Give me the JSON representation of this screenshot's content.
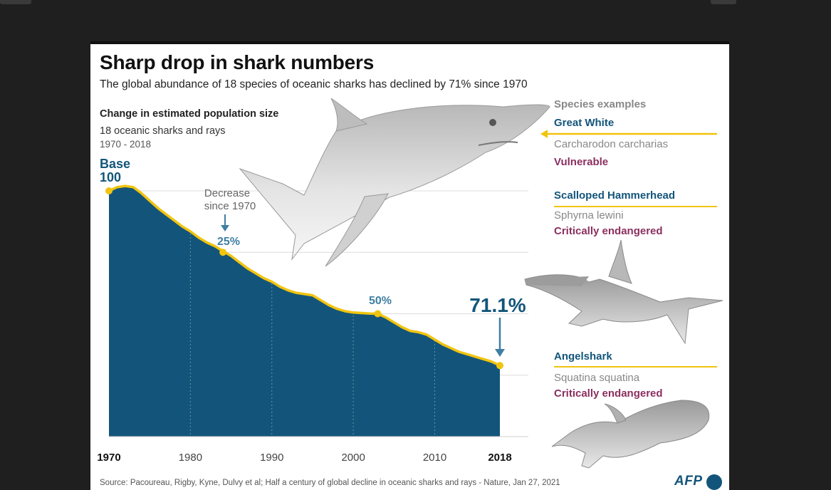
{
  "header": {
    "title": "Sharp drop in shark numbers",
    "subtitle": "The global abundance of 18 species of oceanic sharks has declined by 71% since 1970"
  },
  "chart_label": {
    "heading": "Change in estimated population size",
    "subheading": "18 oceanic sharks and rays",
    "range": "1970 - 2018"
  },
  "chart_data": {
    "type": "area",
    "title": "Change in estimated population size",
    "xlabel": "",
    "ylabel": "",
    "xlim": [
      1970,
      2018
    ],
    "ylim": [
      0,
      100
    ],
    "x_ticks": [
      {
        "label": "1970",
        "value": 1970,
        "bold": true
      },
      {
        "label": "1980",
        "value": 1980,
        "bold": false
      },
      {
        "label": "1990",
        "value": 1990,
        "bold": false
      },
      {
        "label": "2000",
        "value": 2000,
        "bold": false
      },
      {
        "label": "2010",
        "value": 2010,
        "bold": false
      },
      {
        "label": "2018",
        "value": 2018,
        "bold": true
      }
    ],
    "y_gridlines": [
      0,
      25,
      50,
      75,
      100
    ],
    "x": [
      1970,
      1971,
      1972,
      1973,
      1974,
      1975,
      1976,
      1977,
      1978,
      1979,
      1980,
      1981,
      1982,
      1983,
      1984,
      1985,
      1986,
      1987,
      1988,
      1989,
      1990,
      1991,
      1992,
      1993,
      1994,
      1995,
      1996,
      1997,
      1998,
      1999,
      2000,
      2001,
      2002,
      2003,
      2004,
      2005,
      2006,
      2007,
      2008,
      2009,
      2010,
      2011,
      2012,
      2013,
      2014,
      2015,
      2016,
      2017,
      2018
    ],
    "values": [
      100,
      101.5,
      102,
      101.5,
      99,
      96,
      93,
      90.5,
      88,
      85.5,
      83.5,
      81,
      79,
      77.5,
      75.5,
      73.5,
      71,
      68.5,
      66.5,
      64.5,
      63,
      61,
      59.5,
      58.5,
      58,
      57.5,
      55.5,
      53.5,
      52,
      51,
      50.5,
      50.3,
      50.1,
      50,
      48.5,
      46.5,
      44.5,
      43,
      42.5,
      41.5,
      39.5,
      37.5,
      36,
      34.5,
      33.5,
      32.5,
      31.5,
      30.5,
      28.9
    ],
    "markers": [
      {
        "x": 1970,
        "y": 100
      },
      {
        "x": 1984,
        "y": 75
      },
      {
        "x": 2003,
        "y": 50
      },
      {
        "x": 2018,
        "y": 28.9
      }
    ],
    "annotations": {
      "base_line1": "Base",
      "base_line2": "100",
      "decrease_line1": "Decrease",
      "decrease_line2": "since 1970",
      "p25": "25%",
      "p50": "50%",
      "final": "71.1%"
    }
  },
  "species": {
    "heading": "Species examples",
    "items": [
      {
        "name": "Great White",
        "scientific": "Carcharodon carcharias",
        "status": "Vulnerable"
      },
      {
        "name": "Scalloped Hammerhead",
        "scientific": "Sphyrna lewini",
        "status": "Critically endangered"
      },
      {
        "name": "Angelshark",
        "scientific": "Squatina squatina",
        "status": "Critically endangered"
      }
    ]
  },
  "footer": {
    "source": "Source: Pacoureau, Rigby, Kyne, Dulvy et al; Half a century of global decline in oceanic sharks and rays - Nature, Jan 27, 2021",
    "logo": "AFP"
  },
  "colors": {
    "area_fill": "#13557a",
    "line": "#f1c40f",
    "accent_blue": "#13557a",
    "status_purple": "#8b2f5f",
    "annotation_blue": "#3f7fa3"
  }
}
